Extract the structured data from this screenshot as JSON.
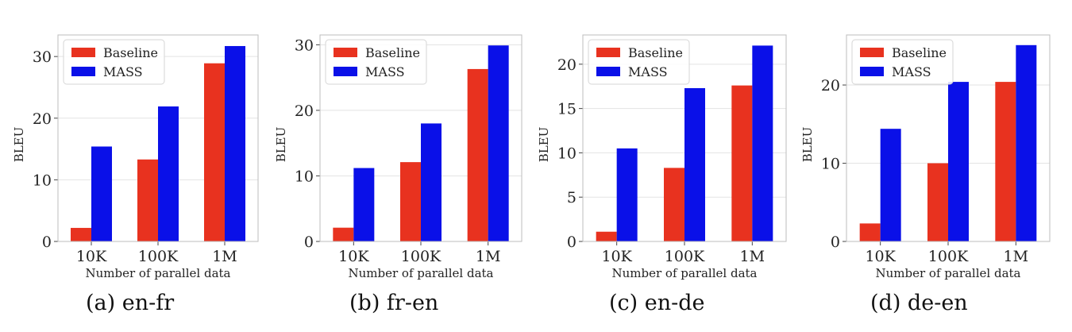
{
  "colors": {
    "baseline": "#e8321f",
    "mass": "#0a10e8",
    "grid": "#e3e3e3",
    "frame": "#bdbdbd"
  },
  "chart_data": [
    {
      "type": "bar",
      "caption": "(a) en-fr",
      "categories": [
        "10K",
        "100K",
        "1M"
      ],
      "series": [
        {
          "name": "Baseline",
          "values": [
            2.2,
            13.3,
            28.9
          ]
        },
        {
          "name": "MASS",
          "values": [
            15.4,
            21.9,
            31.7
          ]
        }
      ],
      "xlabel": "Number of parallel data",
      "ylabel": "BLEU",
      "ylim": [
        0,
        33.5
      ],
      "yticks": [
        0,
        10,
        20,
        30
      ],
      "grid": true,
      "legend": "top-left"
    },
    {
      "type": "bar",
      "caption": "(b) fr-en",
      "categories": [
        "10K",
        "100K",
        "1M"
      ],
      "series": [
        {
          "name": "Baseline",
          "values": [
            2.1,
            12.1,
            26.3
          ]
        },
        {
          "name": "MASS",
          "values": [
            11.2,
            18.0,
            29.9
          ]
        }
      ],
      "xlabel": "Number of parallel data",
      "ylabel": "BLEU",
      "ylim": [
        0,
        31.5
      ],
      "yticks": [
        0,
        10,
        20,
        30
      ],
      "grid": true,
      "legend": "top-left"
    },
    {
      "type": "bar",
      "caption": "(c) en-de",
      "categories": [
        "10K",
        "100K",
        "1M"
      ],
      "series": [
        {
          "name": "Baseline",
          "values": [
            1.1,
            8.3,
            17.6
          ]
        },
        {
          "name": "MASS",
          "values": [
            10.5,
            17.3,
            22.1
          ]
        }
      ],
      "xlabel": "Number of parallel data",
      "ylabel": "BLEU",
      "ylim": [
        0,
        23.3
      ],
      "yticks": [
        0,
        5,
        10,
        15,
        20
      ],
      "grid": true,
      "legend": "top-left"
    },
    {
      "type": "bar",
      "caption": "(d) de-en",
      "categories": [
        "10K",
        "100K",
        "1M"
      ],
      "series": [
        {
          "name": "Baseline",
          "values": [
            2.3,
            10.0,
            20.4
          ]
        },
        {
          "name": "MASS",
          "values": [
            14.4,
            20.4,
            25.1
          ]
        }
      ],
      "xlabel": "Number of parallel data",
      "ylabel": "BLEU",
      "ylim": [
        0,
        26.4
      ],
      "yticks": [
        0,
        10,
        20
      ],
      "grid": true,
      "legend": "top-left"
    }
  ]
}
